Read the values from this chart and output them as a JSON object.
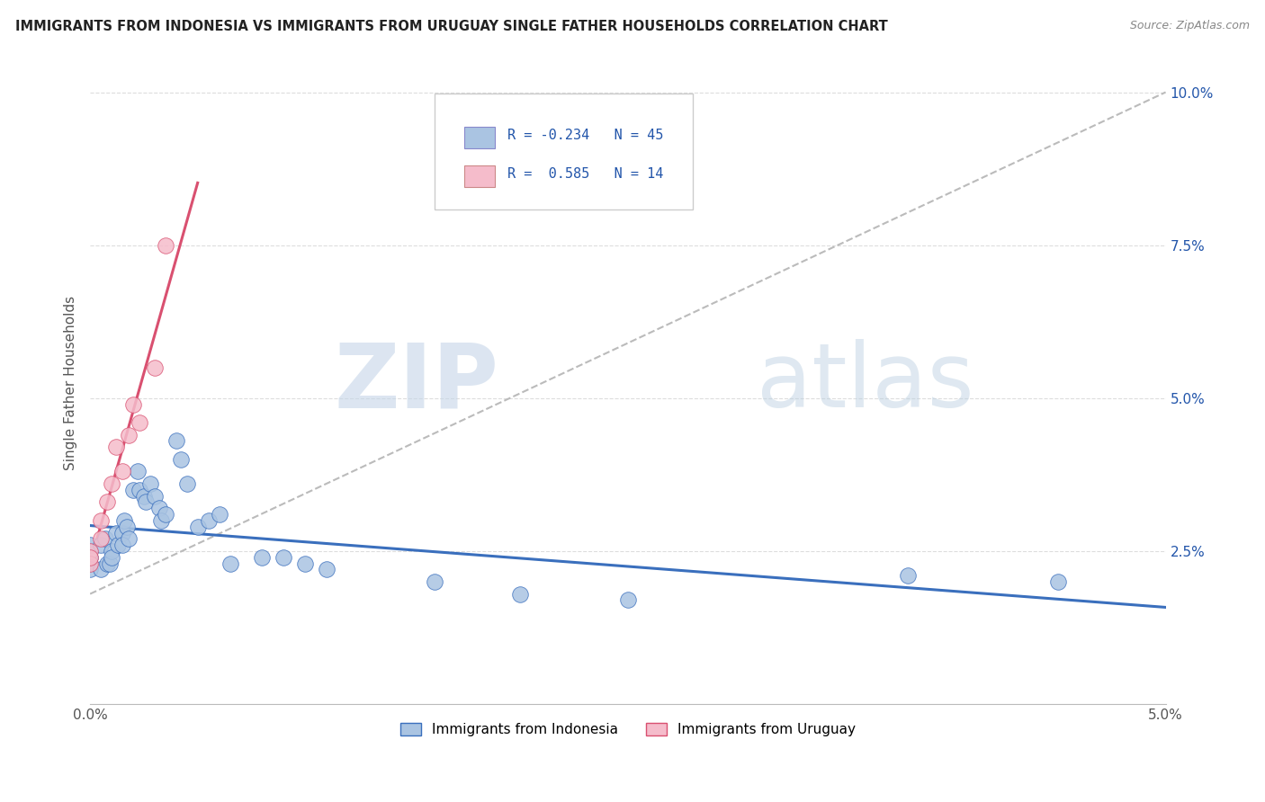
{
  "title": "IMMIGRANTS FROM INDONESIA VS IMMIGRANTS FROM URUGUAY SINGLE FATHER HOUSEHOLDS CORRELATION CHART",
  "source": "Source: ZipAtlas.com",
  "ylabel": "Single Father Households",
  "indonesia": {
    "R": -0.234,
    "N": 45,
    "scatter_color": "#aac4e2",
    "line_color": "#3a6fbd",
    "x": [
      0.0,
      0.0,
      0.0,
      0.0,
      0.0,
      0.0005,
      0.0005,
      0.0007,
      0.0008,
      0.0009,
      0.001,
      0.001,
      0.0012,
      0.0013,
      0.0015,
      0.0015,
      0.0016,
      0.0017,
      0.0018,
      0.002,
      0.0022,
      0.0023,
      0.0025,
      0.0026,
      0.0028,
      0.003,
      0.0032,
      0.0033,
      0.0035,
      0.004,
      0.0042,
      0.0045,
      0.005,
      0.0055,
      0.006,
      0.0065,
      0.008,
      0.009,
      0.01,
      0.011,
      0.016,
      0.02,
      0.025,
      0.038,
      0.045
    ],
    "y": [
      0.025,
      0.024,
      0.023,
      0.026,
      0.022,
      0.026,
      0.022,
      0.027,
      0.023,
      0.023,
      0.025,
      0.024,
      0.028,
      0.026,
      0.028,
      0.026,
      0.03,
      0.029,
      0.027,
      0.035,
      0.038,
      0.035,
      0.034,
      0.033,
      0.036,
      0.034,
      0.032,
      0.03,
      0.031,
      0.043,
      0.04,
      0.036,
      0.029,
      0.03,
      0.031,
      0.023,
      0.024,
      0.024,
      0.023,
      0.022,
      0.02,
      0.018,
      0.017,
      0.021,
      0.02
    ]
  },
  "uruguay": {
    "R": 0.585,
    "N": 14,
    "scatter_color": "#f5bccb",
    "line_color": "#d95070",
    "x": [
      0.0,
      0.0,
      0.0,
      0.0005,
      0.0005,
      0.0008,
      0.001,
      0.0012,
      0.0015,
      0.0018,
      0.002,
      0.0023,
      0.003,
      0.0035
    ],
    "y": [
      0.025,
      0.023,
      0.024,
      0.027,
      0.03,
      0.033,
      0.036,
      0.042,
      0.038,
      0.044,
      0.049,
      0.046,
      0.055,
      0.075
    ]
  },
  "xlim": [
    0.0,
    0.05
  ],
  "ylim": [
    0.0,
    0.105
  ],
  "yticks": [
    0.0,
    0.025,
    0.05,
    0.075,
    0.1
  ],
  "ytick_labels": [
    "",
    "2.5%",
    "5.0%",
    "7.5%",
    "10.0%"
  ],
  "xticks": [
    0.0,
    0.01,
    0.02,
    0.03,
    0.04,
    0.05
  ],
  "xtick_labels": [
    "0.0%",
    "",
    "",
    "",
    "",
    "5.0%"
  ],
  "watermark_zip": "ZIP",
  "watermark_atlas": "atlas",
  "background_color": "#ffffff",
  "grid_color": "#dddddd",
  "dashed_line": {
    "x0": 0.0,
    "y0": 0.018,
    "x1": 0.05,
    "y1": 0.1
  },
  "legend_box_color": "#ffffff",
  "legend_border_color": "#cccccc",
  "legend_text_color": "#2255aa",
  "title_color": "#222222"
}
